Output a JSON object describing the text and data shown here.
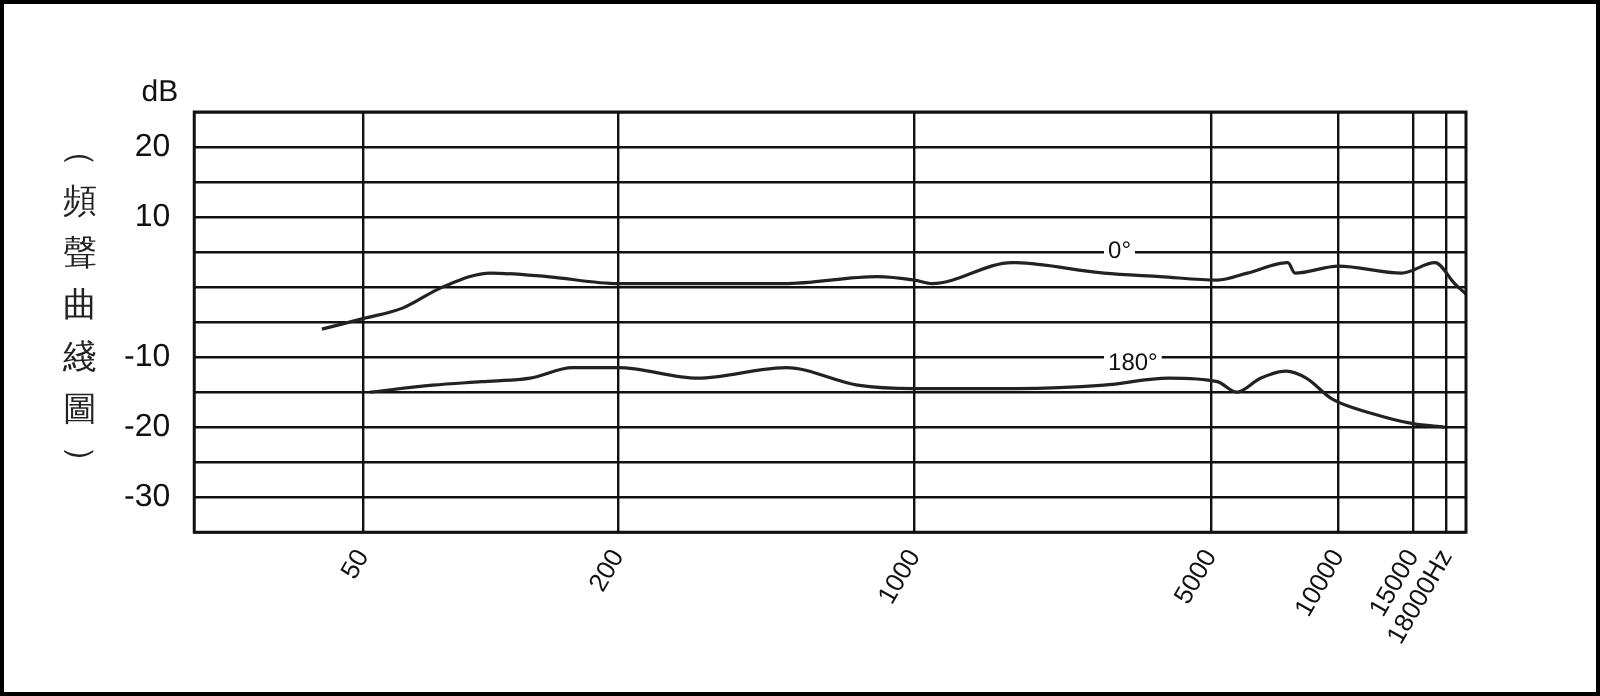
{
  "chart_data": {
    "type": "line",
    "ylabel": "（頻聲曲綫圖）",
    "annotations": [
      "dB"
    ],
    "log": "x",
    "xlim": [
      20,
      20000
    ],
    "xticks": [
      50,
      200,
      1000,
      5000,
      10000,
      15000,
      {
        "value": 18000,
        "label": "18000Hz"
      }
    ],
    "ylim": [
      -35,
      25
    ],
    "yticks": [
      {
        "value": 25,
        "label": null
      },
      20,
      {
        "value": 15,
        "label": null
      },
      10,
      {
        "value": 5,
        "label": null
      },
      {
        "value": 0,
        "label": null
      },
      {
        "value": -5,
        "label": null
      },
      -10,
      {
        "value": -15,
        "label": null
      },
      -20,
      {
        "value": -25,
        "label": null
      },
      -30,
      {
        "value": -35,
        "label": null
      }
    ],
    "grid": true,
    "legend": false,
    "marker": "none",
    "line_style": "solid",
    "series": [
      {
        "name": "0°",
        "color": "#222222",
        "x": [
          40,
          50,
          62,
          77,
          100,
          136,
          200,
          323,
          491,
          818,
          1000,
          1100,
          1700,
          2800,
          3800,
          5180,
          6100,
          7600,
          7900,
          10000,
          14100,
          16900,
          18800,
          20000
        ],
        "values": [
          -6,
          -4.5,
          -3,
          0,
          2,
          1.5,
          0.5,
          0.5,
          0.5,
          1.5,
          1,
          0.5,
          3.5,
          2,
          1.5,
          1,
          2,
          3.5,
          2,
          3,
          2,
          3.5,
          0.5,
          -1
        ]
      },
      {
        "name": "180°",
        "color": "#222222",
        "x": [
          52,
          73,
          95,
          124,
          156,
          200,
          308,
          498,
          734,
          1000,
          1700,
          2800,
          3970,
          5180,
          5750,
          6550,
          7530,
          8400,
          9680,
          11950,
          15000,
          17800
        ],
        "values": [
          -15,
          -14,
          -13.5,
          -13,
          -11.5,
          -11.5,
          -13,
          -11.5,
          -14,
          -14.5,
          -14.5,
          -14,
          -13,
          -13.5,
          -15,
          -13,
          -12,
          -13,
          -16,
          -18,
          -19.5,
          -20
        ]
      }
    ]
  }
}
